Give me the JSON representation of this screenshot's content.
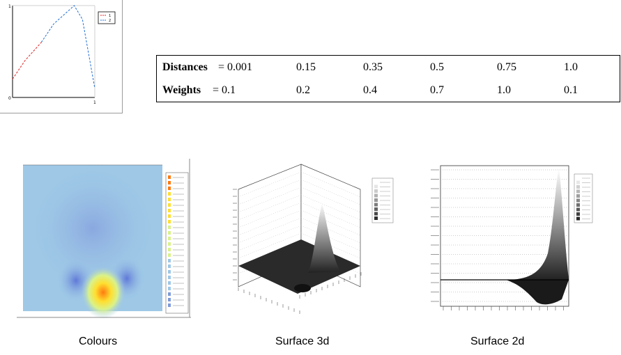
{
  "chart_data": [
    {
      "type": "line",
      "title": "",
      "xlabel": "",
      "ylabel": "",
      "ylim": [
        0,
        1
      ],
      "legend": {
        "position": "top-right",
        "entries": [
          "1",
          "2"
        ]
      },
      "series": [
        {
          "name": "1",
          "color": "#dd2222",
          "x": [
            0.0,
            0.15,
            0.35
          ],
          "y": [
            0.2,
            0.4,
            0.6
          ]
        },
        {
          "name": "2",
          "color": "#1f6fd6",
          "x": [
            0.35,
            0.5,
            0.75,
            0.85,
            1.0
          ],
          "y": [
            0.6,
            0.8,
            1.0,
            0.85,
            0.1
          ]
        }
      ],
      "axes": {
        "y_tick_top": "1",
        "y_tick_bottom": "0",
        "x_tick_right": "1"
      }
    },
    {
      "type": "table",
      "rows": [
        {
          "label": "Distances",
          "equals": " = 0.001",
          "values": [
            "0.15",
            "0.35",
            "0.5",
            "0.75",
            "1.0"
          ]
        },
        {
          "label": "Weights",
          "equals": "   = 0.1",
          "values": [
            "0.2",
            "0.4",
            "0.7",
            "1.0",
            "0.1"
          ]
        }
      ]
    },
    {
      "type": "heatmap",
      "caption": "Colours",
      "colorscale": [
        "#7f9bd9",
        "#9ec8e6",
        "#d9f28a",
        "#ffdf30",
        "#ff7a10"
      ]
    },
    {
      "type": "surface",
      "caption": "Surface 3d",
      "colorscale": [
        "#111111",
        "#ffffff"
      ]
    },
    {
      "type": "surface",
      "caption": "Surface 2d",
      "colorscale": [
        "#111111",
        "#ffffff"
      ]
    }
  ],
  "captions": {
    "colours": "Colours",
    "surface3d": "Surface 3d",
    "surface2d": "Surface 2d"
  }
}
